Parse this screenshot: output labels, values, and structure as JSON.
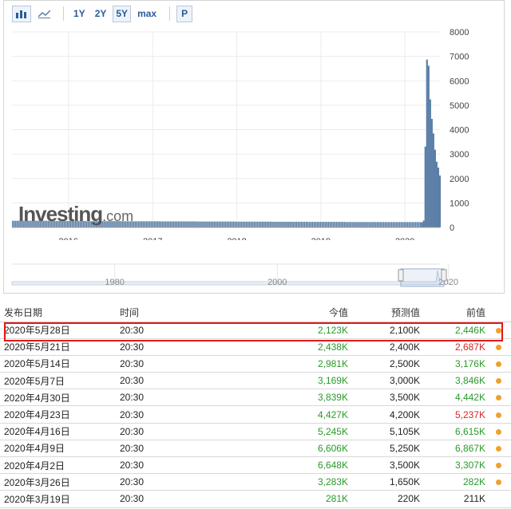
{
  "toolbar": {
    "range_buttons": [
      "1Y",
      "2Y",
      "5Y",
      "max"
    ],
    "active_range": "5Y",
    "print_label": "P"
  },
  "watermark": {
    "brand": "Investing",
    "suffix": ".com"
  },
  "chart_data": [
    {
      "type": "bar",
      "x_tick_labels": [
        "2016",
        "2017",
        "2018",
        "2019",
        "2020"
      ],
      "y_tick_labels": [
        "0",
        "1000",
        "2000",
        "3000",
        "4000",
        "5000",
        "6000",
        "7000",
        "8000"
      ],
      "ylim": [
        0,
        8000
      ],
      "xlim": [
        "2015-05",
        "2020-06"
      ],
      "grid": true,
      "bar_color": "#5b7fa8",
      "baseline_values_k": [
        270,
        260,
        255,
        250,
        245,
        240,
        235,
        230,
        225,
        220,
        218,
        215
      ],
      "series_2020": [
        {
          "date": "2020-03-12",
          "value": 211
        },
        {
          "date": "2020-03-19",
          "value": 281
        },
        {
          "date": "2020-03-26",
          "value": 3307
        },
        {
          "date": "2020-04-02",
          "value": 6867
        },
        {
          "date": "2020-04-09",
          "value": 6615
        },
        {
          "date": "2020-04-16",
          "value": 5237
        },
        {
          "date": "2020-04-23",
          "value": 4442
        },
        {
          "date": "2020-04-30",
          "value": 3846
        },
        {
          "date": "2020-05-07",
          "value": 3176
        },
        {
          "date": "2020-05-14",
          "value": 2687
        },
        {
          "date": "2020-05-21",
          "value": 2446
        },
        {
          "date": "2020-05-28",
          "value": 2123
        }
      ]
    },
    {
      "type": "area",
      "x_tick_labels": [
        "1980",
        "2000",
        "2020"
      ],
      "role": "navigator"
    }
  ],
  "table": {
    "headers": {
      "date": "发布日期",
      "time": "时间",
      "actual": "今值",
      "forecast": "预测值",
      "previous": "前值"
    },
    "rows": [
      {
        "date": "2020年5月28日",
        "time": "20:30",
        "actual": "2,123K",
        "forecast": "2,100K",
        "previous": "2,446K",
        "actual_color": "green",
        "previous_color": "green"
      },
      {
        "date": "2020年5月21日",
        "time": "20:30",
        "actual": "2,438K",
        "forecast": "2,400K",
        "previous": "2,687K",
        "actual_color": "green",
        "previous_color": "red"
      },
      {
        "date": "2020年5月14日",
        "time": "20:30",
        "actual": "2,981K",
        "forecast": "2,500K",
        "previous": "3,176K",
        "actual_color": "green",
        "previous_color": "green"
      },
      {
        "date": "2020年5月7日",
        "time": "20:30",
        "actual": "3,169K",
        "forecast": "3,000K",
        "previous": "3,846K",
        "actual_color": "green",
        "previous_color": "green"
      },
      {
        "date": "2020年4月30日",
        "time": "20:30",
        "actual": "3,839K",
        "forecast": "3,500K",
        "previous": "4,442K",
        "actual_color": "green",
        "previous_color": "green"
      },
      {
        "date": "2020年4月23日",
        "time": "20:30",
        "actual": "4,427K",
        "forecast": "4,200K",
        "previous": "5,237K",
        "actual_color": "green",
        "previous_color": "red"
      },
      {
        "date": "2020年4月16日",
        "time": "20:30",
        "actual": "5,245K",
        "forecast": "5,105K",
        "previous": "6,615K",
        "actual_color": "green",
        "previous_color": "green"
      },
      {
        "date": "2020年4月9日",
        "time": "20:30",
        "actual": "6,606K",
        "forecast": "5,250K",
        "previous": "6,867K",
        "actual_color": "green",
        "previous_color": "green"
      },
      {
        "date": "2020年4月2日",
        "time": "20:30",
        "actual": "6,648K",
        "forecast": "3,500K",
        "previous": "3,307K",
        "actual_color": "green",
        "previous_color": "green"
      },
      {
        "date": "2020年3月26日",
        "time": "20:30",
        "actual": "3,283K",
        "forecast": "1,650K",
        "previous": "282K",
        "actual_color": "green",
        "previous_color": "green"
      },
      {
        "date": "2020年3月19日",
        "time": "20:30",
        "actual": "281K",
        "forecast": "220K",
        "previous": "211K",
        "actual_color": "green",
        "previous_color": "none"
      }
    ]
  },
  "highlighted_row": "2020年5月28日",
  "colors": {
    "accent": "#2a5b9a",
    "highlight": "#e01818",
    "positive": "#2a9a2a",
    "negative": "#d22828",
    "dot": "#f0a030"
  }
}
